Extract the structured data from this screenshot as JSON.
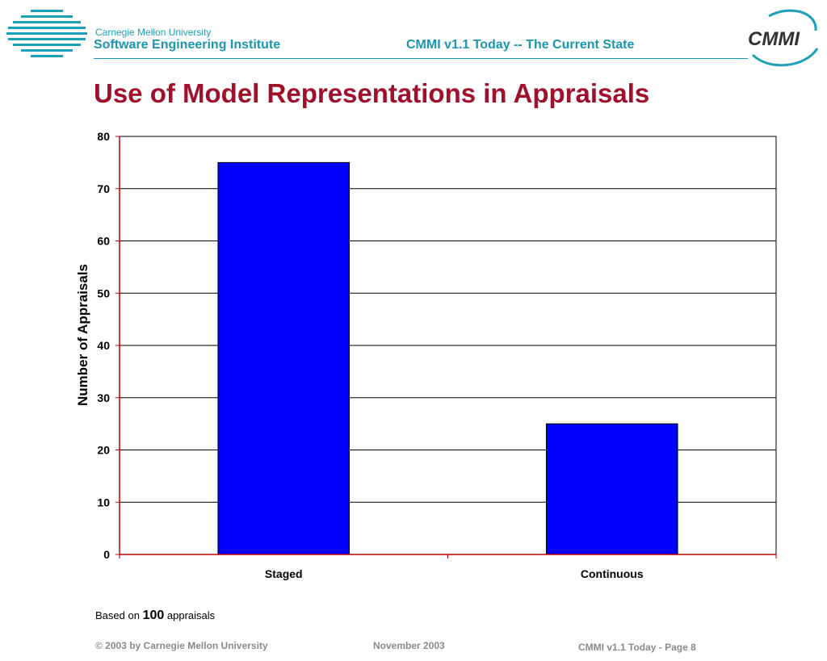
{
  "header": {
    "university": "Carnegie Mellon University",
    "institute": "Software Engineering Institute",
    "document_title": "CMMI v1.1 Today -- The Current State",
    "logo_text": "CMMI"
  },
  "slide": {
    "title": "Use of Model Representations in Appraisals"
  },
  "chart_data": {
    "type": "bar",
    "title": "",
    "xlabel": "",
    "ylabel": "Number of Appraisals",
    "categories": [
      "Staged",
      "Continuous"
    ],
    "values": [
      75,
      25
    ],
    "ylim": [
      0,
      80
    ],
    "yticks": [
      0,
      10,
      20,
      30,
      40,
      50,
      60,
      70,
      80
    ],
    "grid": true,
    "legend": "none",
    "colors": {
      "bar": "#0000ff",
      "axis": "#c00000",
      "grid": "#000000"
    }
  },
  "note": {
    "prefix": "Based on",
    "count": "100",
    "suffix": "appraisals"
  },
  "footer": {
    "copyright": "© 2003 by Carnegie Mellon University",
    "date": "November 2003",
    "page": "CMMI v1.1 Today - Page 8"
  },
  "colors": {
    "title": "#a0102a",
    "header": "#1a96b0",
    "footer": "#8a8a8a"
  }
}
